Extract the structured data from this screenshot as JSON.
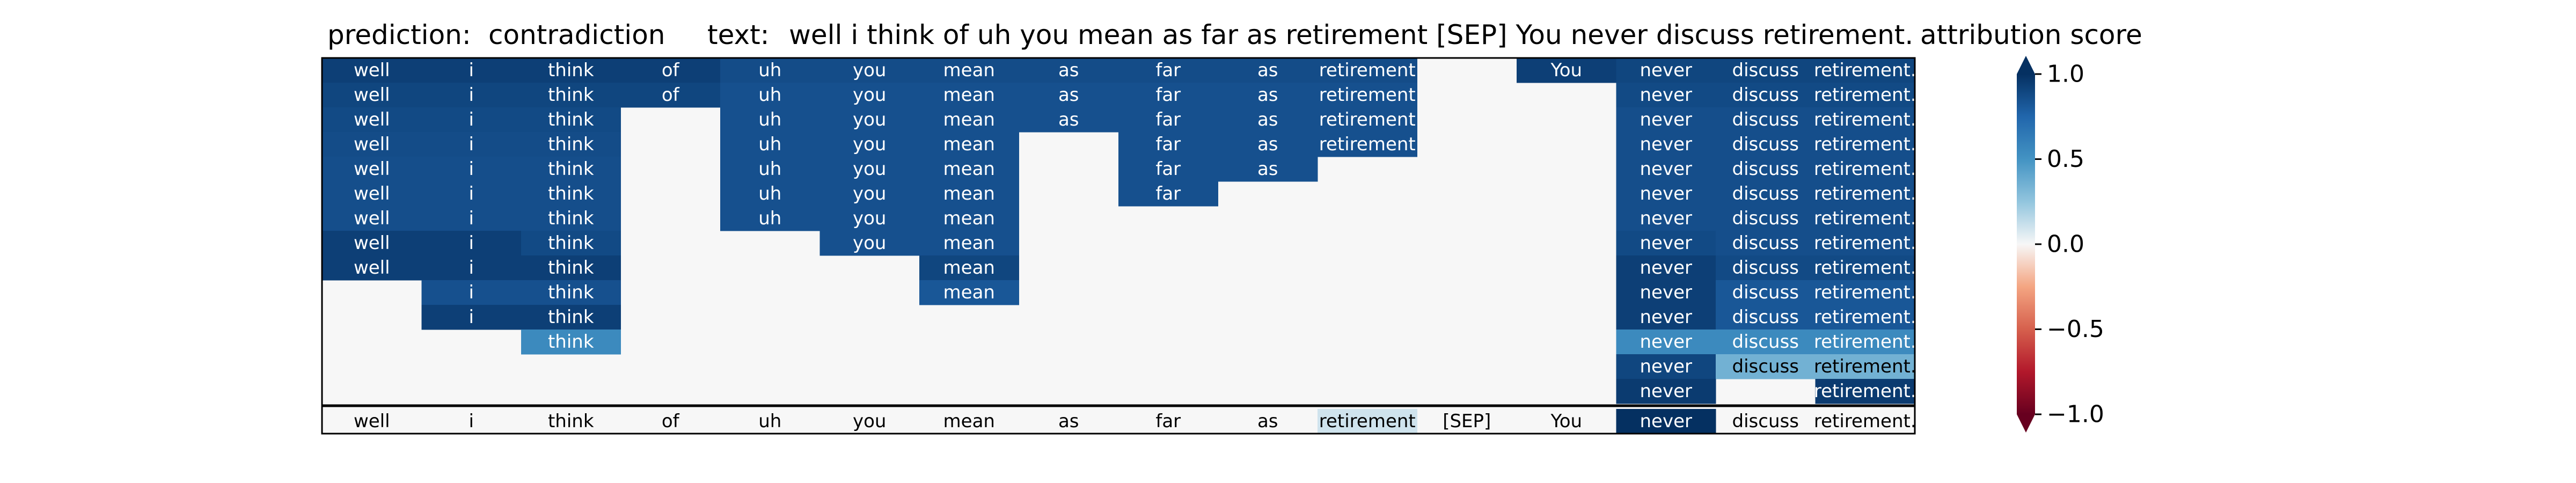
{
  "header": {
    "prediction_label": "prediction:",
    "prediction_value": "contradiction",
    "text_label": "text:",
    "text_value": "well i think of uh you mean as far as retirement [SEP] You never discuss retirement.",
    "colorbar_label": "attribution score"
  },
  "colors": {
    "background": "#f7f7f7",
    "dark_blue": "#134a82",
    "mid_blue": "#1f69b0",
    "medium_blue": "#2f78b6",
    "light_blue": "#6fadd5",
    "pale_blue": "#a6cfe4",
    "border": "#000000"
  },
  "chart_data": {
    "type": "heatmap",
    "columns": [
      "well",
      "i",
      "think",
      "of",
      "uh",
      "you",
      "mean",
      "as",
      "far",
      "as",
      "retirement",
      "[SEP]",
      "You",
      "never",
      "discuss",
      "retirement."
    ],
    "bottom_row": [
      0.0,
      0.0,
      0.0,
      0.0,
      0.0,
      0.0,
      0.0,
      0.0,
      0.0,
      0.0,
      0.1,
      0.0,
      0.0,
      1.0,
      0.0,
      0.0
    ],
    "rows": [
      [
        0.93,
        0.93,
        0.93,
        0.93,
        0.87,
        0.87,
        0.87,
        0.87,
        0.87,
        0.87,
        0.87,
        null,
        0.93,
        0.9,
        0.9,
        0.9
      ],
      [
        0.9,
        0.9,
        0.9,
        0.9,
        0.85,
        0.85,
        0.85,
        0.85,
        0.85,
        0.85,
        0.85,
        null,
        null,
        0.88,
        0.88,
        0.88
      ],
      [
        0.88,
        0.88,
        0.88,
        null,
        0.85,
        0.85,
        0.85,
        0.85,
        0.85,
        0.85,
        0.85,
        null,
        null,
        0.86,
        0.86,
        0.86
      ],
      [
        0.87,
        0.87,
        0.87,
        null,
        0.85,
        0.85,
        0.85,
        null,
        0.85,
        0.85,
        0.85,
        null,
        null,
        0.86,
        0.86,
        0.86
      ],
      [
        0.86,
        0.86,
        0.86,
        null,
        0.85,
        0.85,
        0.85,
        null,
        0.85,
        0.85,
        null,
        null,
        null,
        0.86,
        0.86,
        0.86
      ],
      [
        0.86,
        0.86,
        0.86,
        null,
        0.85,
        0.85,
        0.85,
        null,
        0.85,
        null,
        null,
        null,
        null,
        0.86,
        0.86,
        0.86
      ],
      [
        0.86,
        0.86,
        0.86,
        null,
        0.85,
        0.85,
        0.85,
        null,
        null,
        null,
        null,
        null,
        null,
        0.86,
        0.86,
        0.86
      ],
      [
        0.93,
        0.93,
        0.88,
        null,
        null,
        0.85,
        0.85,
        null,
        null,
        null,
        null,
        null,
        null,
        0.88,
        0.86,
        0.86
      ],
      [
        0.93,
        0.93,
        0.93,
        null,
        null,
        null,
        0.9,
        null,
        null,
        null,
        null,
        null,
        null,
        0.93,
        0.88,
        0.88
      ],
      [
        null,
        0.85,
        0.85,
        null,
        null,
        null,
        0.82,
        null,
        null,
        null,
        null,
        null,
        null,
        0.93,
        0.82,
        0.82
      ],
      [
        null,
        0.93,
        0.93,
        null,
        null,
        null,
        null,
        null,
        null,
        null,
        null,
        null,
        null,
        0.93,
        0.82,
        0.82
      ],
      [
        null,
        null,
        0.55,
        null,
        null,
        null,
        null,
        null,
        null,
        null,
        null,
        null,
        null,
        0.55,
        0.55,
        0.55
      ],
      [
        null,
        null,
        null,
        null,
        null,
        null,
        null,
        null,
        null,
        null,
        null,
        null,
        null,
        0.9,
        0.35,
        0.35
      ],
      [
        null,
        null,
        null,
        null,
        null,
        null,
        null,
        null,
        null,
        null,
        null,
        null,
        null,
        0.95,
        null,
        0.95
      ]
    ],
    "colorbar": {
      "ticks": [
        1.0,
        0.5,
        0.0,
        -0.5,
        -1.0
      ],
      "tick_labels": [
        "1.0",
        "0.5",
        "0.0",
        "−0.5",
        "−1.0"
      ],
      "vmin": -1.0,
      "vmax": 1.0,
      "colormap": "RdBu"
    }
  }
}
